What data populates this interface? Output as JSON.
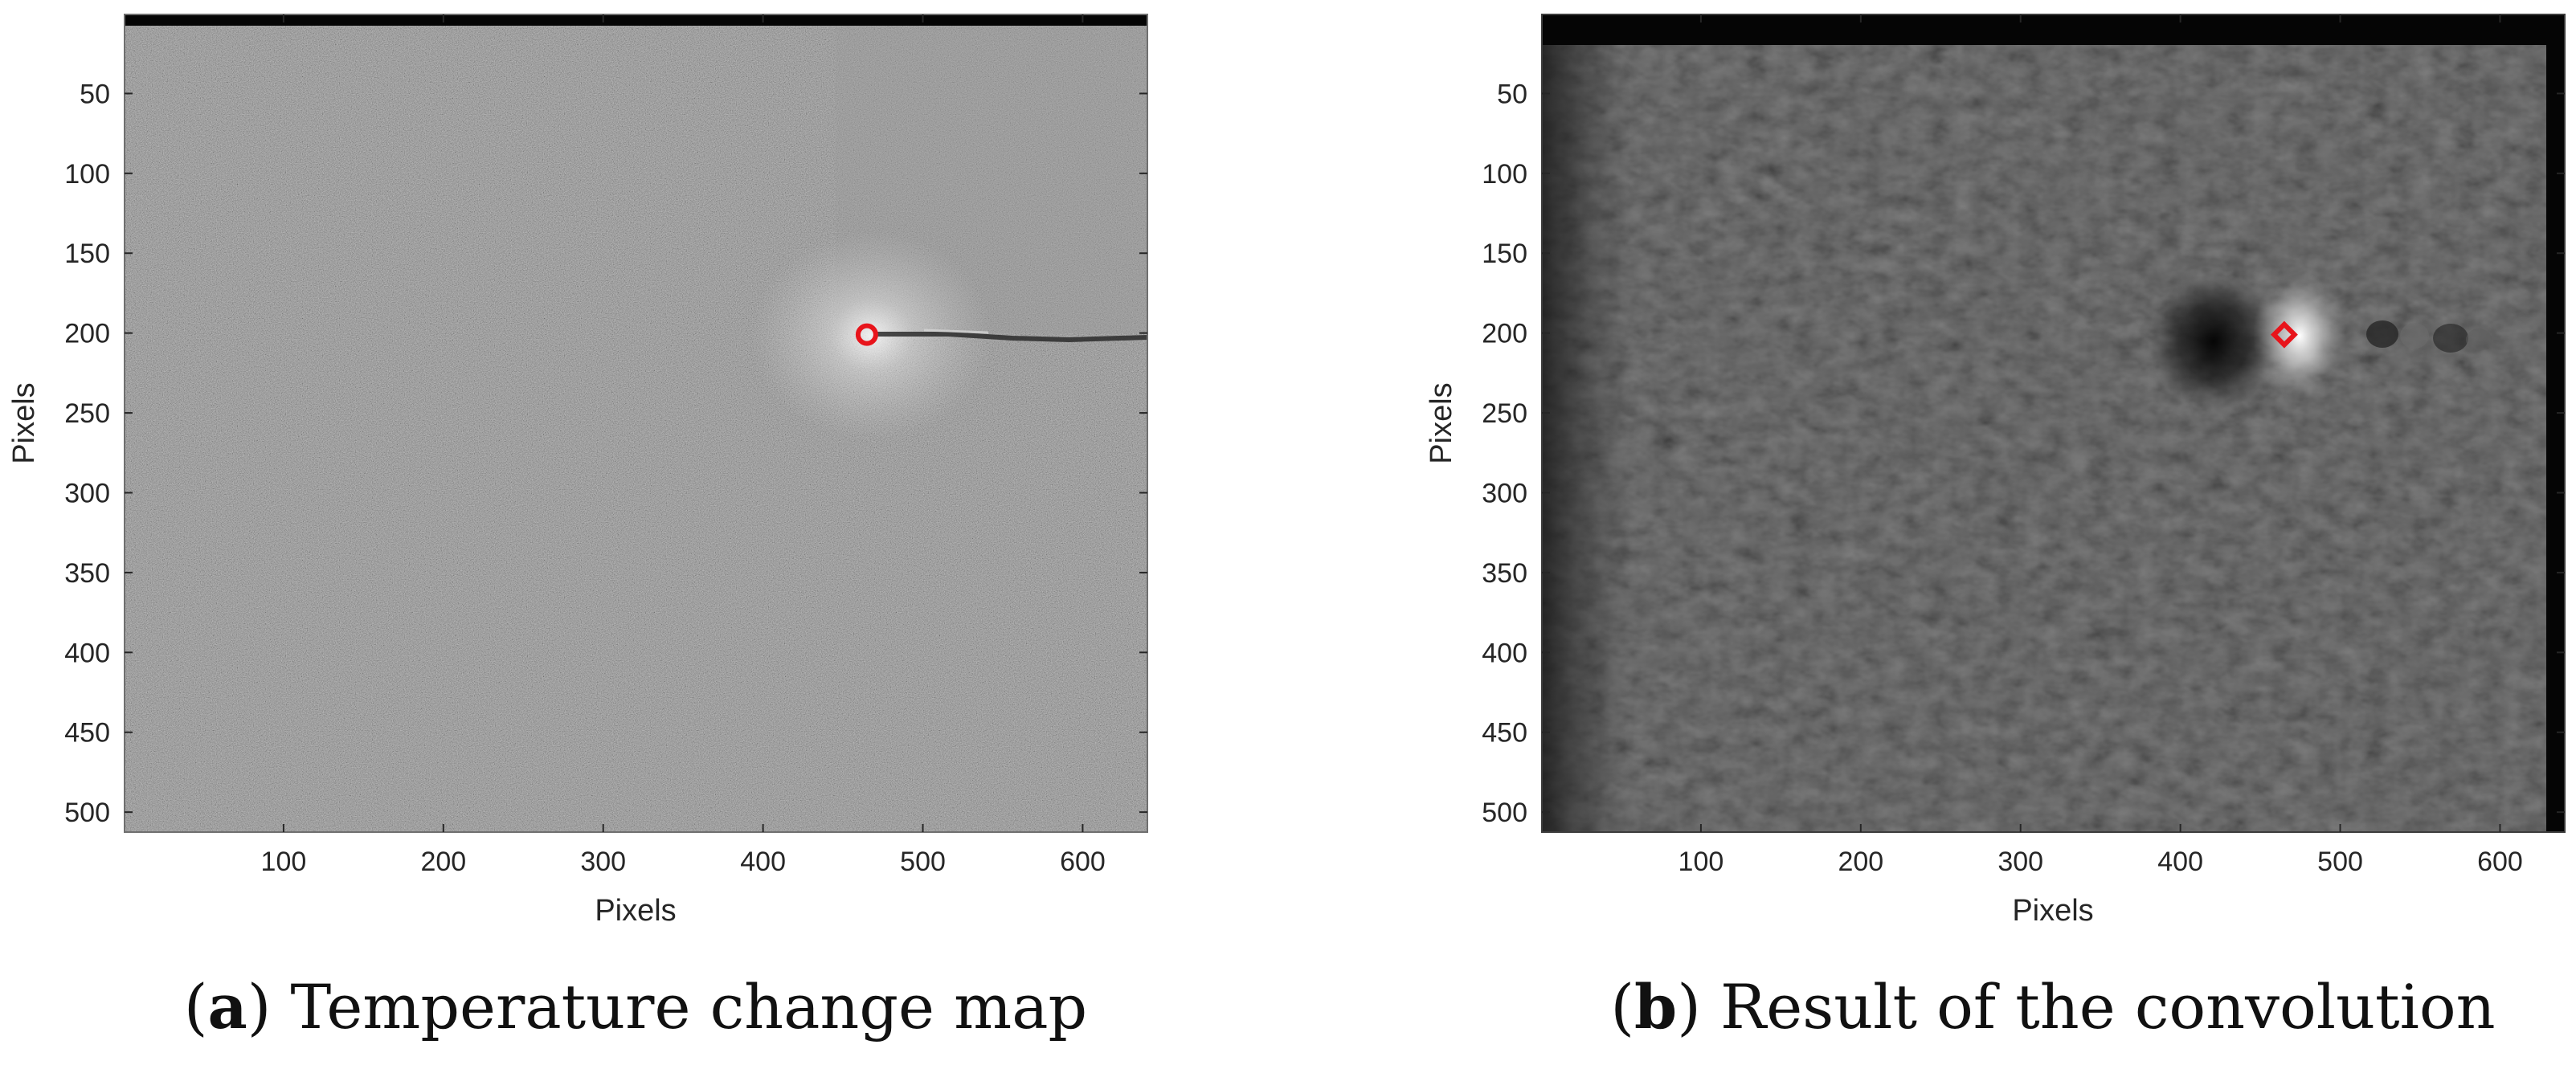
{
  "colors": {
    "marker": "#e8141b",
    "frame_a": "#6f6f6f",
    "frame_b": "#3c3c3c",
    "border_band": "#050505"
  },
  "chart_data": [
    {
      "type": "heatmap",
      "colormap": "gray",
      "panel_letter": "a",
      "caption_text": " Temperature change map",
      "xlabel": "Pixels",
      "ylabel": "Pixels",
      "xlim": [
        0.5,
        640.5
      ],
      "ylim": [
        0.5,
        512.5
      ],
      "y_reversed": true,
      "x_ticks": [
        100,
        200,
        300,
        400,
        500,
        600
      ],
      "y_ticks": [
        50,
        100,
        150,
        200,
        250,
        300,
        350,
        400,
        450,
        500
      ],
      "grid": false,
      "marker": {
        "x": 465,
        "y": 201,
        "shape": "circle"
      },
      "border_band_rows": [
        0.5,
        8
      ]
    },
    {
      "type": "heatmap",
      "colormap": "gray",
      "panel_letter": "b",
      "caption_text": " Result of the convolution",
      "xlabel": "Pixels",
      "ylabel": "Pixels",
      "xlim": [
        0.5,
        640.5
      ],
      "ylim": [
        0.5,
        512.5
      ],
      "y_reversed": true,
      "x_ticks": [
        100,
        200,
        300,
        400,
        500,
        600
      ],
      "y_ticks": [
        50,
        100,
        150,
        200,
        250,
        300,
        350,
        400,
        450,
        500
      ],
      "grid": false,
      "marker": {
        "x": 465,
        "y": 201,
        "shape": "diamond"
      },
      "border_band_rows": [
        0.5,
        19
      ],
      "border_band_cols": [
        629,
        640.5
      ]
    }
  ]
}
